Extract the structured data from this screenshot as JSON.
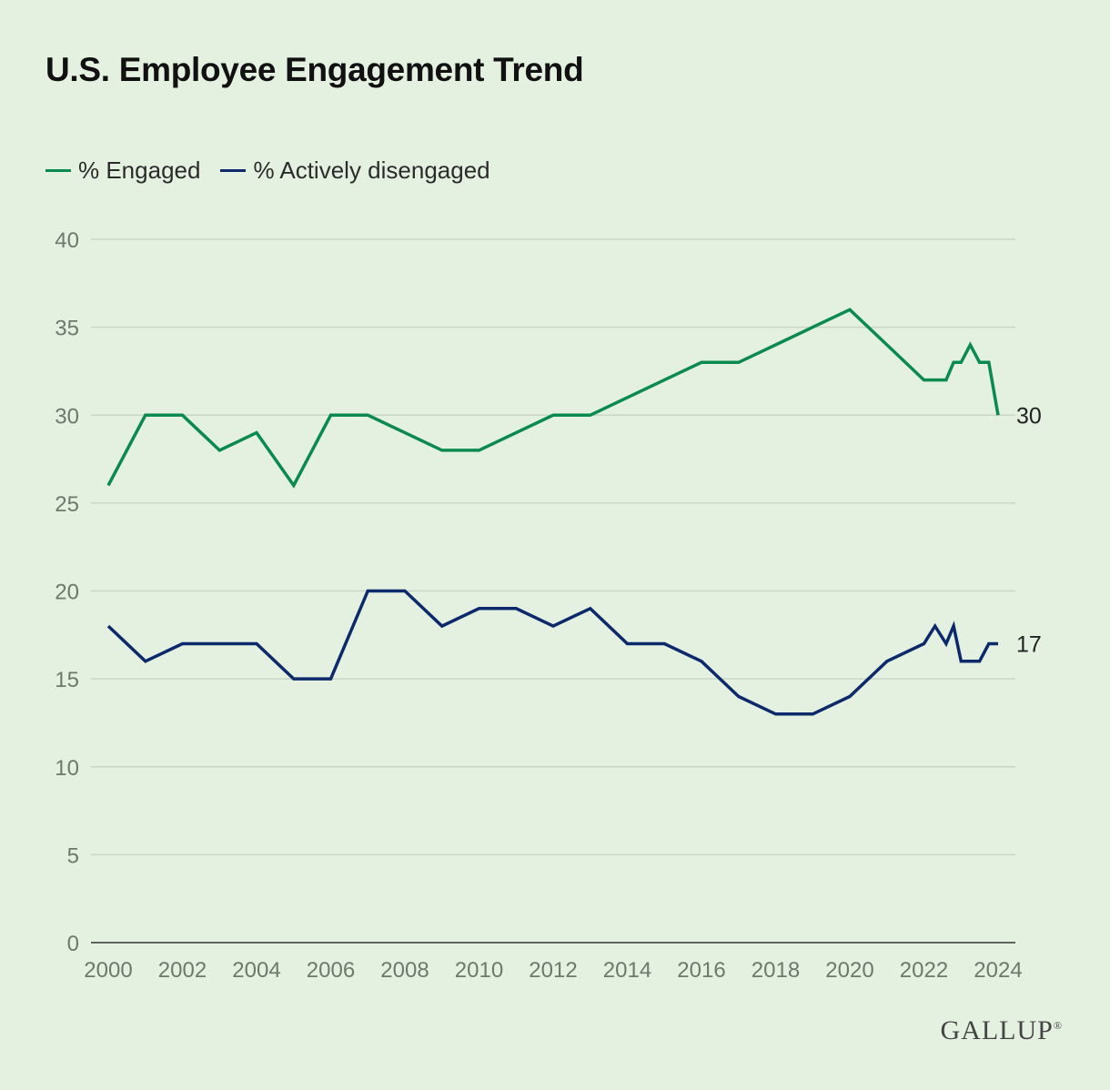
{
  "chart_data": {
    "type": "line",
    "title": "U.S. Employee Engagement Trend",
    "xlabel": "",
    "ylabel": "",
    "xlim": [
      2000,
      2024
    ],
    "ylim": [
      0,
      40
    ],
    "x_ticks": [
      "2000",
      "2002",
      "2004",
      "2006",
      "2008",
      "2010",
      "2012",
      "2014",
      "2016",
      "2018",
      "2020",
      "2022",
      "2024"
    ],
    "y_ticks": [
      "0",
      "5",
      "10",
      "15",
      "20",
      "25",
      "30",
      "35",
      "40"
    ],
    "grid": true,
    "legend_position": "top-left",
    "series": [
      {
        "name": "% Engaged",
        "color": "#0b8a4f",
        "end_label": "30",
        "points": [
          [
            2000,
            26
          ],
          [
            2001,
            30
          ],
          [
            2002,
            30
          ],
          [
            2003,
            28
          ],
          [
            2004,
            29
          ],
          [
            2005,
            26
          ],
          [
            2006,
            30
          ],
          [
            2007,
            30
          ],
          [
            2008,
            29
          ],
          [
            2009,
            28
          ],
          [
            2010,
            28
          ],
          [
            2011,
            29
          ],
          [
            2012,
            30
          ],
          [
            2013,
            30
          ],
          [
            2014,
            31
          ],
          [
            2015,
            32
          ],
          [
            2016,
            33
          ],
          [
            2017,
            33
          ],
          [
            2018,
            34
          ],
          [
            2019,
            35
          ],
          [
            2020,
            36
          ],
          [
            2021,
            34
          ],
          [
            2022,
            32
          ],
          [
            2022.6,
            32
          ],
          [
            2022.8,
            33
          ],
          [
            2023,
            33
          ],
          [
            2023.25,
            34
          ],
          [
            2023.5,
            33
          ],
          [
            2023.75,
            33
          ],
          [
            2024,
            30
          ]
        ]
      },
      {
        "name": "% Actively disengaged",
        "color": "#0c2a6b",
        "end_label": "17",
        "points": [
          [
            2000,
            18
          ],
          [
            2001,
            16
          ],
          [
            2002,
            17
          ],
          [
            2003,
            17
          ],
          [
            2004,
            17
          ],
          [
            2005,
            15
          ],
          [
            2006,
            15
          ],
          [
            2007,
            20
          ],
          [
            2008,
            20
          ],
          [
            2009,
            18
          ],
          [
            2010,
            19
          ],
          [
            2011,
            19
          ],
          [
            2012,
            18
          ],
          [
            2013,
            19
          ],
          [
            2014,
            17
          ],
          [
            2015,
            17
          ],
          [
            2016,
            16
          ],
          [
            2017,
            14
          ],
          [
            2018,
            13
          ],
          [
            2019,
            13
          ],
          [
            2020,
            14
          ],
          [
            2021,
            16
          ],
          [
            2022,
            17
          ],
          [
            2022.3,
            18
          ],
          [
            2022.6,
            17
          ],
          [
            2022.8,
            18
          ],
          [
            2023,
            16
          ],
          [
            2023.5,
            16
          ],
          [
            2023.75,
            17
          ],
          [
            2024,
            17
          ]
        ]
      }
    ]
  },
  "brand": {
    "logo": "GALLUP"
  }
}
